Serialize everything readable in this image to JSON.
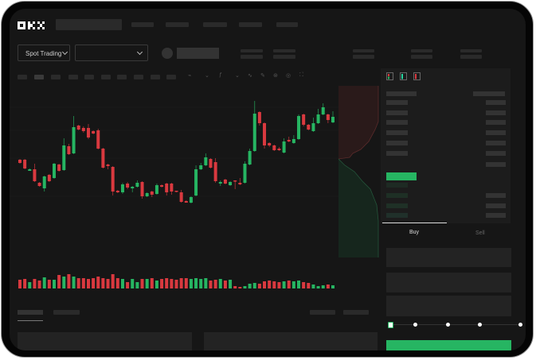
{
  "logo": {
    "text": "OKX"
  },
  "toolbar": {
    "market_selector": "Spot Trading"
  },
  "order_form": {
    "tabs": [
      {
        "label": "Buy",
        "active": true
      },
      {
        "label": "Sell",
        "active": false
      }
    ],
    "slider_value_percent": 0,
    "slider_steps": [
      0,
      25,
      50,
      75,
      100
    ]
  },
  "colors": {
    "up": "#26b562",
    "down": "#d9393f",
    "background": "#161616",
    "bezel": "#050505"
  },
  "icons": [
    "order-book-both-icon",
    "order-book-bids-icon",
    "order-book-asks-icon"
  ],
  "chart_data": {
    "type": "candlestick",
    "title": "",
    "grid": true,
    "candles_ohlc": [
      [
        62,
        63,
        57,
        58
      ],
      [
        62,
        63,
        50,
        51
      ],
      [
        48,
        51,
        48,
        50
      ],
      [
        50,
        57,
        34,
        35
      ],
      [
        33,
        34,
        28,
        29
      ],
      [
        26,
        42,
        22,
        41
      ],
      [
        43,
        44,
        34,
        35
      ],
      [
        39,
        58,
        38,
        57
      ],
      [
        56,
        57,
        47,
        48
      ],
      [
        49,
        89,
        48,
        80
      ],
      [
        79,
        82,
        68,
        69
      ],
      [
        70,
        117,
        69,
        103
      ],
      [
        105,
        106,
        99,
        100
      ],
      [
        102,
        104,
        96,
        98
      ],
      [
        102,
        107,
        88,
        90
      ],
      [
        98,
        99,
        94,
        95
      ],
      [
        99,
        101,
        75,
        76
      ],
      [
        76,
        77,
        51,
        52
      ],
      [
        56,
        57,
        50,
        54
      ],
      [
        53,
        54,
        17,
        22
      ],
      [
        23,
        24,
        20,
        21
      ],
      [
        21,
        33,
        19,
        31
      ],
      [
        32,
        34,
        25,
        27
      ],
      [
        26,
        29,
        21,
        28
      ],
      [
        28,
        36,
        27,
        33
      ],
      [
        34,
        35,
        13,
        16
      ],
      [
        16,
        21,
        15,
        20
      ],
      [
        22,
        23,
        15,
        18
      ],
      [
        19,
        32,
        18,
        30
      ],
      [
        30,
        31,
        27,
        28
      ],
      [
        32,
        33,
        17,
        21
      ],
      [
        32,
        33,
        18,
        22
      ],
      [
        23,
        23,
        21,
        22
      ],
      [
        21,
        24,
        8,
        9
      ],
      [
        10,
        11,
        8,
        8
      ],
      [
        8,
        16,
        7,
        15
      ],
      [
        17,
        55,
        16,
        50
      ],
      [
        50,
        58,
        49,
        55
      ],
      [
        55,
        70,
        54,
        65
      ],
      [
        63,
        64,
        51,
        52
      ],
      [
        59,
        64,
        33,
        35
      ],
      [
        32,
        36,
        29,
        34
      ],
      [
        37,
        38,
        31,
        32
      ],
      [
        30,
        35,
        29,
        34
      ],
      [
        36,
        36,
        25,
        35
      ],
      [
        33,
        39,
        30,
        31
      ],
      [
        33,
        60,
        32,
        57
      ],
      [
        56,
        76,
        55,
        73
      ],
      [
        73,
        136,
        72,
        120
      ],
      [
        122,
        123,
        105,
        108
      ],
      [
        108,
        109,
        76,
        80
      ],
      [
        83,
        84,
        78,
        80
      ],
      [
        80,
        81,
        73,
        74
      ],
      [
        76,
        78,
        73,
        74
      ],
      [
        71,
        89,
        70,
        85
      ],
      [
        87,
        91,
        84,
        85
      ],
      [
        83,
        93,
        82,
        88
      ],
      [
        88,
        119,
        87,
        117
      ],
      [
        119,
        120,
        104,
        106
      ],
      [
        106,
        107,
        99,
        100
      ],
      [
        98,
        115,
        97,
        108
      ],
      [
        108,
        126,
        107,
        119
      ],
      [
        119,
        133,
        118,
        128
      ],
      [
        119,
        120,
        108,
        112
      ],
      [
        109,
        123,
        108,
        116
      ]
    ],
    "volumes": [
      11,
      12,
      8,
      12,
      10,
      14,
      11,
      11,
      17,
      15,
      18,
      15,
      13,
      13,
      12,
      13,
      15,
      13,
      12,
      18,
      13,
      12,
      8,
      12,
      8,
      12,
      12,
      13,
      10,
      12,
      13,
      12,
      11,
      13,
      13,
      12,
      13,
      12,
      13,
      10,
      11,
      12,
      10,
      11,
      3,
      2,
      3,
      6,
      7,
      6,
      9,
      10,
      9,
      8,
      9,
      10,
      9,
      10,
      8,
      7,
      5,
      3,
      4,
      5,
      4
    ]
  }
}
